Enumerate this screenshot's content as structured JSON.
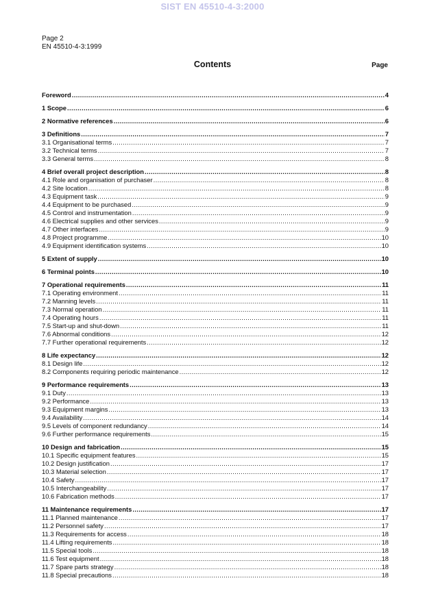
{
  "watermark": "SIST EN 45510-4-3:2000",
  "header": {
    "page": "Page 2",
    "doc_id": "EN 45510-4-3:1999"
  },
  "title": "Contents",
  "page_column_label": "Page",
  "sections": [
    {
      "title": "Foreword",
      "page": "4",
      "subs": []
    },
    {
      "title": "1 Scope",
      "page": "6",
      "subs": []
    },
    {
      "title": "2 Normative references",
      "page": "6",
      "subs": []
    },
    {
      "title": "3 Definitions",
      "page": "7",
      "subs": [
        {
          "title": "3.1 Organisational terms",
          "page": "7"
        },
        {
          "title": "3.2 Technical terms",
          "page": "7"
        },
        {
          "title": "3.3 General terms",
          "page": "8"
        }
      ]
    },
    {
      "title": "4 Brief overall project description",
      "page": "8",
      "subs": [
        {
          "title": "4.1 Role and organisation of purchaser",
          "page": "8"
        },
        {
          "title": "4.2 Site location",
          "page": "8"
        },
        {
          "title": "4.3 Equipment task",
          "page": "9"
        },
        {
          "title": "4.4 Equipment to be purchased",
          "page": "9"
        },
        {
          "title": "4.5 Control and instrumentation",
          "page": "9"
        },
        {
          "title": "4.6 Electrical supplies and other services",
          "page": "9"
        },
        {
          "title": "4.7 Other interfaces",
          "page": "9"
        },
        {
          "title": "4.8 Project programme",
          "page": "10"
        },
        {
          "title": "4.9 Equipment identification systems",
          "page": "10"
        }
      ]
    },
    {
      "title": "5 Extent of supply",
      "page": "10",
      "subs": []
    },
    {
      "title": "6 Terminal points",
      "page": "10",
      "subs": []
    },
    {
      "title": "7 Operational requirements",
      "page": "11",
      "subs": [
        {
          "title": "7.1 Operating environment",
          "page": "11"
        },
        {
          "title": "7.2 Manning levels",
          "page": "11"
        },
        {
          "title": "7.3 Normal operation",
          "page": "11"
        },
        {
          "title": "7.4 Operating hours",
          "page": "11"
        },
        {
          "title": "7.5 Start-up and shut-down",
          "page": "11"
        },
        {
          "title": "7.6 Abnormal conditions",
          "page": "12"
        },
        {
          "title": "7.7 Further operational requirements",
          "page": "12"
        }
      ]
    },
    {
      "title": "8 Life expectancy",
      "page": "12",
      "subs": [
        {
          "title": "8.1 Design life",
          "page": "12"
        },
        {
          "title": "8.2 Components requiring periodic maintenance",
          "page": "12"
        }
      ]
    },
    {
      "title": "9 Performance requirements",
      "page": "13",
      "subs": [
        {
          "title": "9.1 Duty",
          "page": "13"
        },
        {
          "title": "9.2 Performance",
          "page": "13"
        },
        {
          "title": "9.3 Equipment margins",
          "page": "13"
        },
        {
          "title": "9.4 Availability",
          "page": "14"
        },
        {
          "title": "9.5 Levels of component redundancy",
          "page": "14"
        },
        {
          "title": "9.6 Further performance requirements",
          "page": "15"
        }
      ]
    },
    {
      "title": "10 Design and fabrication",
      "page": "15",
      "subs": [
        {
          "title": "10.1 Specific equipment features",
          "page": "15"
        },
        {
          "title": "10.2 Design justification",
          "page": "17"
        },
        {
          "title": "10.3 Material selection",
          "page": "17"
        },
        {
          "title": "10.4 Safety",
          "page": "17"
        },
        {
          "title": "10.5 Interchangeability",
          "page": "17"
        },
        {
          "title": "10.6 Fabrication methods",
          "page": "17"
        }
      ]
    },
    {
      "title": "11 Maintenance requirements",
      "page": "17",
      "subs": [
        {
          "title": "11.1 Planned maintenance",
          "page": "17"
        },
        {
          "title": "11.2 Personnel safety",
          "page": "17"
        },
        {
          "title": "11.3 Requirements for access",
          "page": "18"
        },
        {
          "title": "11.4 Lifting requirements",
          "page": "18"
        },
        {
          "title": "11.5 Special tools",
          "page": "18"
        },
        {
          "title": "11.6 Test equipment",
          "page": "18"
        },
        {
          "title": "11.7 Spare parts strategy",
          "page": "18"
        },
        {
          "title": "11.8 Special precautions",
          "page": "18"
        }
      ]
    }
  ]
}
